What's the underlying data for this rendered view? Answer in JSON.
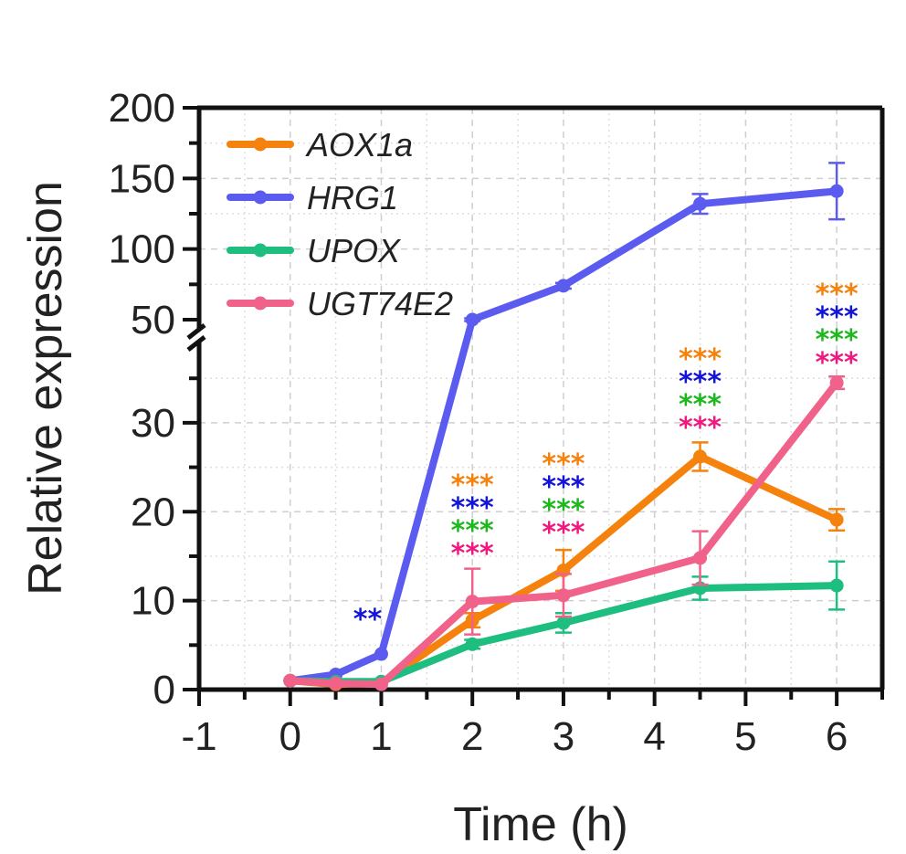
{
  "chart_data": {
    "type": "line",
    "xlabel": "Time (h)",
    "ylabel": "Relative expression",
    "xlim": [
      -1,
      6.5
    ],
    "x_ticks": [
      -1,
      0,
      1,
      2,
      3,
      4,
      5,
      6
    ],
    "y_axis_break": {
      "lower_range": [
        0,
        38
      ],
      "upper_range": [
        40,
        200
      ],
      "lower_ticks": [
        0,
        10,
        20,
        30
      ],
      "upper_ticks": [
        50,
        100,
        150,
        200
      ]
    },
    "grid": true,
    "legend_position": "top-left",
    "series": [
      {
        "name": "AOX1a",
        "color": "#F5820D",
        "x": [
          0,
          0.5,
          1,
          2,
          3,
          4.5,
          6
        ],
        "y": [
          1,
          0.6,
          0.7,
          7.8,
          13.4,
          26.2,
          19.1
        ],
        "error": [
          0.2,
          0.1,
          0.2,
          0.8,
          2.3,
          1.6,
          1.2
        ]
      },
      {
        "name": "HRG1",
        "color": "#5B5BEF",
        "x": [
          0,
          0.5,
          1,
          2,
          3,
          4.5,
          6
        ],
        "y": [
          1,
          1.7,
          4,
          50,
          74,
          132,
          141
        ],
        "error": [
          0.1,
          0.2,
          0.3,
          1,
          2,
          7,
          20
        ]
      },
      {
        "name": "UPOX",
        "color": "#1DBE7F",
        "x": [
          0,
          0.5,
          1,
          2,
          3,
          4.5,
          6
        ],
        "y": [
          1,
          0.9,
          0.9,
          5.1,
          7.5,
          11.4,
          11.7
        ],
        "error": [
          0.1,
          0.1,
          0.1,
          0.5,
          1.1,
          1.3,
          2.7
        ]
      },
      {
        "name": "UGT74E2",
        "color": "#F0628A",
        "x": [
          0,
          0.5,
          1,
          2,
          3,
          4.5,
          6
        ],
        "y": [
          1,
          0.7,
          0.6,
          9.9,
          10.6,
          14.8,
          34.5
        ],
        "error": [
          0.1,
          0.1,
          0.1,
          3.7,
          2.4,
          3,
          0.7
        ]
      }
    ],
    "significance_colors": [
      "#F5820D",
      "#1414D8",
      "#1DB81D",
      "#F0187F"
    ],
    "annotations": [
      {
        "x": 0.85,
        "text": "**",
        "series": "HRG1",
        "color": "#1414D8"
      },
      {
        "x": 2,
        "stack": [
          "***",
          "***",
          "***",
          "***"
        ]
      },
      {
        "x": 3,
        "stack": [
          "***",
          "***",
          "***",
          "***"
        ]
      },
      {
        "x": 4.5,
        "stack": [
          "***",
          "***",
          "***",
          "***"
        ]
      },
      {
        "x": 6,
        "stack": [
          "***",
          "***",
          "***",
          "***"
        ]
      }
    ]
  }
}
